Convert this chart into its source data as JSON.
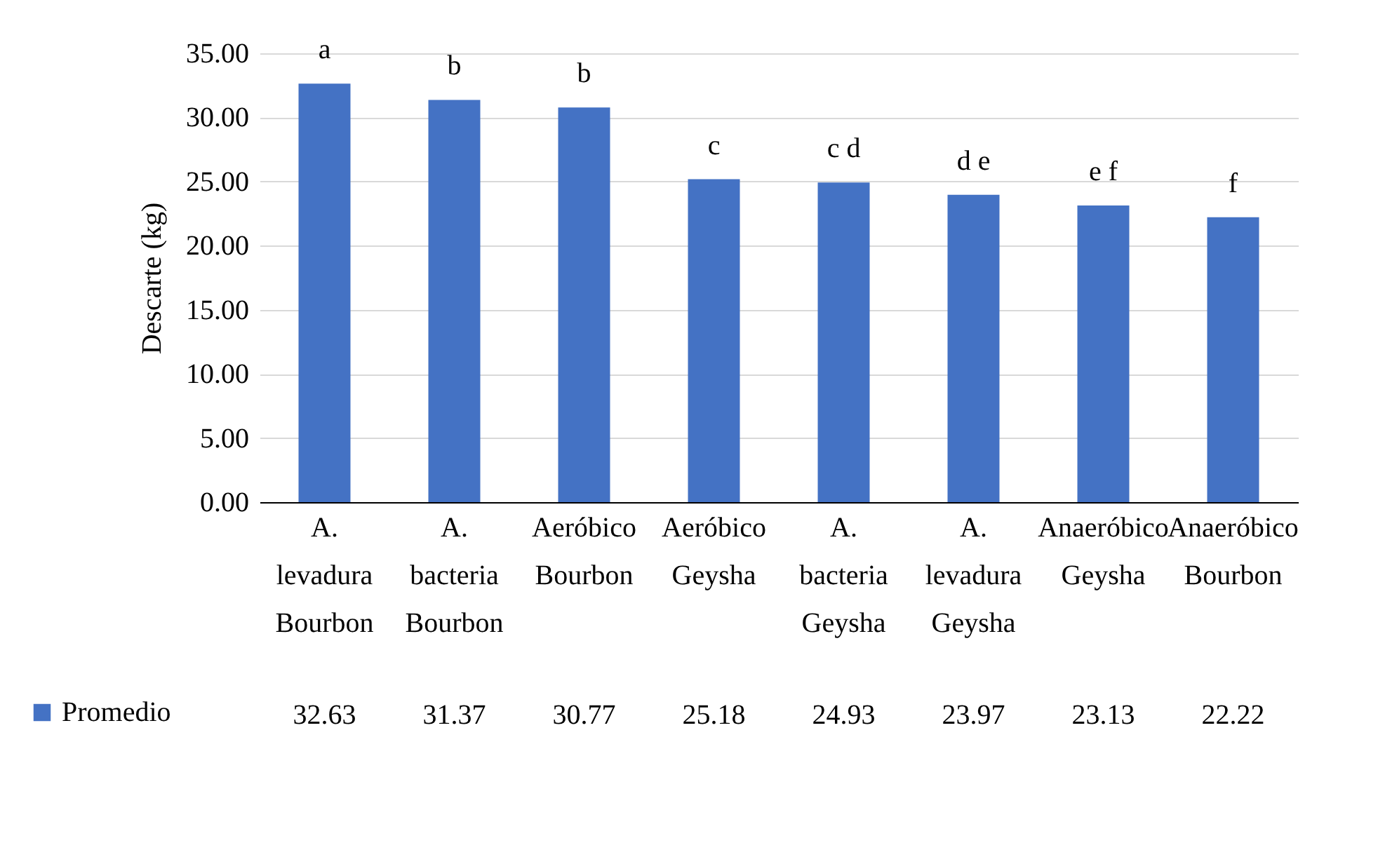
{
  "chart_data": {
    "type": "bar",
    "ylabel": "Descarte (kg)",
    "categories": [
      "A. levadura Bourbon",
      "A. bacteria Bourbon",
      "Aeróbico Bourbon",
      "Aeróbico Geysha",
      "A. bacteria Geysha",
      "A. levadura Geysha",
      "Anaeróbico Geysha",
      "Anaeróbico Bourbon"
    ],
    "series": [
      {
        "name": "Promedio",
        "color": "#4472c4",
        "values": [
          32.63,
          31.37,
          30.77,
          25.18,
          24.93,
          23.97,
          23.13,
          22.22
        ]
      }
    ],
    "ylim": [
      0,
      35
    ],
    "yticks": [
      {
        "value": 0,
        "label": "0.00"
      },
      {
        "value": 5,
        "label": "5.00"
      },
      {
        "value": 10,
        "label": "10.00"
      },
      {
        "value": 15,
        "label": "15.00"
      },
      {
        "value": 20,
        "label": "20.00"
      },
      {
        "value": 25,
        "label": "25.00"
      },
      {
        "value": 30,
        "label": "30.00"
      },
      {
        "value": 35,
        "label": "35.00"
      }
    ],
    "grid": "y",
    "legend": "bottom left",
    "data_labels": true,
    "annotations": [
      {
        "text": "a",
        "x": "A. levadura Bourbon",
        "y": 32.63
      },
      {
        "text": "b",
        "x": "A. bacteria Bourbon",
        "y": 31.37
      },
      {
        "text": "b",
        "x": "Aeróbico Bourbon",
        "y": 30.77
      },
      {
        "text": "c",
        "x": "Aeróbico Geysha",
        "y": 25.18
      },
      {
        "text": "c  d",
        "x": "A. bacteria Geysha",
        "y": 24.93
      },
      {
        "text": "d  e",
        "x": "A. levadura Geysha",
        "y": 23.97
      },
      {
        "text": "e  f",
        "x": "Anaeróbico Geysha",
        "y": 23.13
      },
      {
        "text": "f",
        "x": "Anaeróbico Bourbon",
        "y": 22.22
      }
    ]
  }
}
